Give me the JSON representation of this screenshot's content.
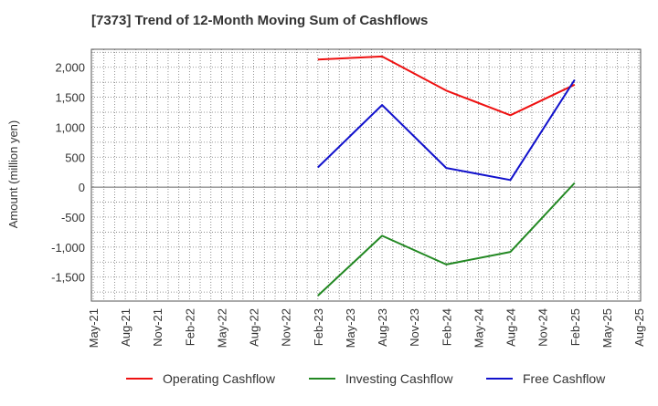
{
  "chart_data": {
    "type": "line",
    "title": "[7373]  Trend of 12-Month Moving Sum of Cashflows",
    "ylabel": "Amount (million yen)",
    "xlabel": "",
    "categories": [
      "May-21",
      "Aug-21",
      "Nov-21",
      "Feb-22",
      "May-22",
      "Aug-22",
      "Nov-22",
      "Feb-23",
      "May-23",
      "Aug-23",
      "Nov-23",
      "Feb-24",
      "May-24",
      "Aug-24",
      "Nov-24",
      "Feb-25",
      "May-25",
      "Aug-25"
    ],
    "y_ticks": [
      2000,
      1500,
      1000,
      500,
      0,
      -500,
      -1000,
      -1500
    ],
    "y_tick_labels": [
      "2,000",
      "1,500",
      "1,000",
      "500",
      "0",
      "-500",
      "-1,000",
      "-1,500"
    ],
    "ylim": [
      -1900,
      2300
    ],
    "grid": true,
    "legend_position": "bottom",
    "series": [
      {
        "name": "Operating Cashflow",
        "color": "#ee1111",
        "points": [
          {
            "x": "Feb-23",
            "y": 2130
          },
          {
            "x": "Aug-23",
            "y": 2180
          },
          {
            "x": "Feb-24",
            "y": 1610
          },
          {
            "x": "Aug-24",
            "y": 1200
          },
          {
            "x": "Feb-25",
            "y": 1710
          }
        ]
      },
      {
        "name": "Investing Cashflow",
        "color": "#228822",
        "points": [
          {
            "x": "Feb-23",
            "y": -1810
          },
          {
            "x": "Aug-23",
            "y": -810
          },
          {
            "x": "Feb-24",
            "y": -1290
          },
          {
            "x": "Aug-24",
            "y": -1080
          },
          {
            "x": "Feb-25",
            "y": 70
          }
        ]
      },
      {
        "name": "Free Cashflow",
        "color": "#1111cc",
        "points": [
          {
            "x": "Feb-23",
            "y": 330
          },
          {
            "x": "Aug-23",
            "y": 1370
          },
          {
            "x": "Feb-24",
            "y": 320
          },
          {
            "x": "Aug-24",
            "y": 120
          },
          {
            "x": "Feb-25",
            "y": 1790
          }
        ]
      }
    ]
  }
}
